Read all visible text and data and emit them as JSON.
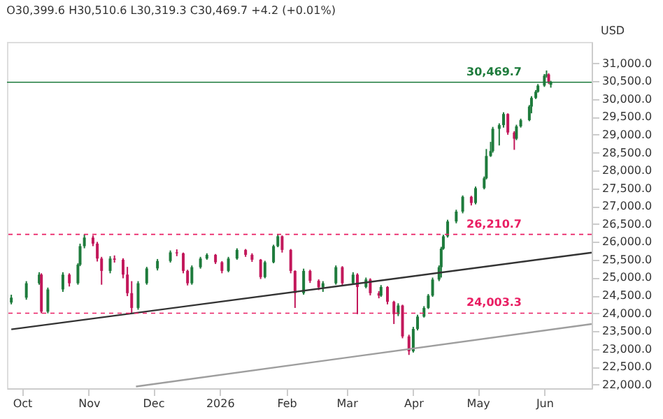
{
  "chart_data": {
    "type": "candlestick",
    "annotations": [
      "O30,399.6 H30,510.6 L30,319.3 C30,469.7 +4.2 (+0.01%)"
    ],
    "ylabel": "USD",
    "x": [
      "2025-09-26",
      "2025-10-03",
      "2025-10-09",
      "2025-10-10",
      "2025-10-13",
      "2025-10-20",
      "2025-10-23",
      "2025-10-27",
      "2025-10-28",
      "2025-10-30",
      "2025-11-03",
      "2025-11-05",
      "2025-11-07",
      "2025-11-11",
      "2025-11-13",
      "2025-11-17",
      "2025-11-19",
      "2025-11-21",
      "2025-11-24",
      "2025-11-28",
      "2025-12-03",
      "2025-12-09",
      "2025-12-12",
      "2025-12-15",
      "2025-12-17",
      "2025-12-19",
      "2025-12-23",
      "2025-12-26",
      "2025-12-30",
      "2026-01-02",
      "2026-01-05",
      "2026-01-09",
      "2026-01-13",
      "2026-01-16",
      "2026-01-20",
      "2026-01-22",
      "2026-01-26",
      "2026-01-28",
      "2026-01-30",
      "2026-02-03",
      "2026-02-05",
      "2026-02-09",
      "2026-02-12",
      "2026-02-16",
      "2026-02-18",
      "2026-02-24",
      "2026-02-27",
      "2026-03-04",
      "2026-03-06",
      "2026-03-10",
      "2026-03-12",
      "2026-03-16",
      "2026-03-17",
      "2026-03-20",
      "2026-03-23",
      "2026-03-25",
      "2026-03-27",
      "2026-03-30",
      "2026-04-01",
      "2026-04-03",
      "2026-04-06",
      "2026-04-08",
      "2026-04-10",
      "2026-04-13",
      "2026-04-14",
      "2026-04-15",
      "2026-04-17",
      "2026-04-21",
      "2026-04-24",
      "2026-04-28",
      "2026-04-30",
      "2026-05-04",
      "2026-05-05",
      "2026-05-07",
      "2026-05-08",
      "2026-05-11",
      "2026-05-13",
      "2026-05-15",
      "2026-05-18",
      "2026-05-19",
      "2026-05-21",
      "2026-05-25",
      "2026-05-26",
      "2026-05-28",
      "2026-05-29",
      "2026-06-01",
      "2026-06-02",
      "2026-06-03",
      "2026-06-04"
    ],
    "ohlc": [
      [
        24300,
        24520,
        24250,
        24437
      ],
      [
        24437,
        24900,
        24380,
        24841
      ],
      [
        24841,
        25150,
        24800,
        25083
      ],
      [
        25083,
        25120,
        24000,
        24045
      ],
      [
        24045,
        24720,
        24000,
        24668
      ],
      [
        24668,
        25150,
        24600,
        25083
      ],
      [
        25083,
        25120,
        24750,
        24841
      ],
      [
        24841,
        25400,
        24800,
        25360
      ],
      [
        25360,
        25950,
        25320,
        25880
      ],
      [
        25880,
        26210,
        25820,
        26120
      ],
      [
        26120,
        26180,
        25880,
        25950
      ],
      [
        25950,
        26000,
        25450,
        25533
      ],
      [
        25533,
        25580,
        24800,
        25187
      ],
      [
        25187,
        25600,
        25120,
        25533
      ],
      [
        25533,
        25620,
        25420,
        25500
      ],
      [
        25500,
        25540,
        24980,
        25083
      ],
      [
        25083,
        25300,
        24480,
        24564
      ],
      [
        24564,
        24900,
        24003,
        24150
      ],
      [
        24150,
        24900,
        24100,
        24841
      ],
      [
        24841,
        25300,
        24800,
        25256
      ],
      [
        25256,
        25520,
        25200,
        25464
      ],
      [
        25464,
        25760,
        25420,
        25706
      ],
      [
        25706,
        25790,
        25600,
        25680
      ],
      [
        25680,
        25700,
        25120,
        25187
      ],
      [
        25187,
        25220,
        24780,
        24841
      ],
      [
        24841,
        25340,
        24800,
        25291
      ],
      [
        25291,
        25580,
        25250,
        25533
      ],
      [
        25533,
        25680,
        25500,
        25637
      ],
      [
        25637,
        25660,
        25380,
        25429
      ],
      [
        25429,
        25460,
        25120,
        25187
      ],
      [
        25187,
        25580,
        25150,
        25533
      ],
      [
        25533,
        25820,
        25500,
        25775
      ],
      [
        25775,
        25800,
        25580,
        25637
      ],
      [
        25637,
        25680,
        25440,
        25500
      ],
      [
        25500,
        25520,
        24960,
        25014
      ],
      [
        25014,
        25470,
        24980,
        25429
      ],
      [
        25429,
        25920,
        25400,
        25880
      ],
      [
        25880,
        26210,
        25850,
        26156
      ],
      [
        26156,
        26180,
        25700,
        25775
      ],
      [
        25775,
        25800,
        25120,
        25187
      ],
      [
        25187,
        25200,
        24150,
        24564
      ],
      [
        24564,
        25250,
        24520,
        25187
      ],
      [
        25187,
        25220,
        24850,
        24910
      ],
      [
        24910,
        24950,
        24650,
        24730
      ],
      [
        24730,
        24900,
        24600,
        24841
      ],
      [
        24841,
        25340,
        24800,
        25291
      ],
      [
        25291,
        25320,
        24780,
        24841
      ],
      [
        24841,
        25150,
        24800,
        25083
      ],
      [
        25083,
        25120,
        23976,
        24737
      ],
      [
        24737,
        25000,
        24700,
        24945
      ],
      [
        24945,
        24980,
        24500,
        24564
      ],
      [
        24564,
        24620,
        24420,
        24495
      ],
      [
        24495,
        24790,
        24460,
        24737
      ],
      [
        24737,
        24760,
        24250,
        24322
      ],
      [
        24322,
        24350,
        23700,
        23976
      ],
      [
        23976,
        24280,
        23920,
        24218
      ],
      [
        24218,
        24240,
        23300,
        23353
      ],
      [
        23353,
        23400,
        22834,
        22938
      ],
      [
        22938,
        23620,
        22900,
        23561
      ],
      [
        23561,
        23960,
        23520,
        23907
      ],
      [
        23907,
        24200,
        23880,
        24150
      ],
      [
        24150,
        24540,
        24120,
        24495
      ],
      [
        24495,
        25000,
        24460,
        24945
      ],
      [
        24945,
        25340,
        24900,
        25291
      ],
      [
        25291,
        25860,
        25000,
        25810
      ],
      [
        25810,
        26200,
        25780,
        26156
      ],
      [
        26156,
        26620,
        26120,
        26571
      ],
      [
        26571,
        26900,
        26520,
        26848
      ],
      [
        26848,
        27300,
        26800,
        27263
      ],
      [
        27263,
        27290,
        27020,
        27090
      ],
      [
        27090,
        27550,
        27050,
        27505
      ],
      [
        27505,
        27830,
        27470,
        27782
      ],
      [
        27782,
        28600,
        27750,
        28405
      ],
      [
        28405,
        28800,
        28380,
        28543
      ],
      [
        28543,
        29220,
        28500,
        29166
      ],
      [
        29166,
        29320,
        28700,
        29270
      ],
      [
        29270,
        29630,
        29200,
        29581
      ],
      [
        29581,
        29600,
        29000,
        29062
      ],
      [
        29062,
        29100,
        28578,
        28889
      ],
      [
        28889,
        29280,
        28850,
        29235
      ],
      [
        29235,
        29450,
        29200,
        29408
      ],
      [
        29408,
        29830,
        29380,
        29789
      ],
      [
        29789,
        30080,
        29600,
        30031
      ],
      [
        30031,
        30250,
        30000,
        30204
      ],
      [
        30204,
        30420,
        30180,
        30377
      ],
      [
        30377,
        30700,
        30340,
        30654
      ],
      [
        30654,
        30800,
        30600,
        30689
      ],
      [
        30689,
        30720,
        30420,
        30465.5
      ],
      [
        30399.6,
        30510.6,
        30319.3,
        30469.7
      ]
    ],
    "colors": [
      "#1e7b3c",
      "#1e7b3c",
      "#1e7b3c",
      "#c2185b",
      "#1e7b3c",
      "#1e7b3c",
      "#c2185b",
      "#1e7b3c",
      "#1e7b3c",
      "#1e7b3c",
      "#c2185b",
      "#c2185b",
      "#c2185b",
      "#1e7b3c",
      "#c2185b",
      "#c2185b",
      "#c2185b",
      "#c2185b",
      "#1e7b3c",
      "#1e7b3c",
      "#1e7b3c",
      "#1e7b3c",
      "#c2185b",
      "#c2185b",
      "#c2185b",
      "#1e7b3c",
      "#1e7b3c",
      "#1e7b3c",
      "#c2185b",
      "#c2185b",
      "#1e7b3c",
      "#1e7b3c",
      "#c2185b",
      "#c2185b",
      "#c2185b",
      "#1e7b3c",
      "#1e7b3c",
      "#1e7b3c",
      "#c2185b",
      "#c2185b",
      "#c2185b",
      "#1e7b3c",
      "#c2185b",
      "#c2185b",
      "#1e7b3c",
      "#1e7b3c",
      "#c2185b",
      "#1e7b3c",
      "#c2185b",
      "#1e7b3c",
      "#c2185b",
      "#c2185b",
      "#1e7b3c",
      "#c2185b",
      "#c2185b",
      "#1e7b3c",
      "#c2185b",
      "#c2185b",
      "#1e7b3c",
      "#1e7b3c",
      "#1e7b3c",
      "#1e7b3c",
      "#1e7b3c",
      "#1e7b3c",
      "#1e7b3c",
      "#1e7b3c",
      "#1e7b3c",
      "#1e7b3c",
      "#1e7b3c",
      "#c2185b",
      "#1e7b3c",
      "#1e7b3c",
      "#1e7b3c",
      "#1e7b3c",
      "#1e7b3c",
      "#1e7b3c",
      "#1e7b3c",
      "#c2185b",
      "#c2185b",
      "#1e7b3c",
      "#1e7b3c",
      "#1e7b3c",
      "#1e7b3c",
      "#1e7b3c",
      "#1e7b3c",
      "#1e7b3c",
      "#1e7b3c",
      "#c2185b",
      "#1e7b3c"
    ],
    "series": [
      {
        "type": "line",
        "x": [
          "2025-09-26",
          "2026-06-23"
        ],
        "values": [
          23550,
          25700
        ],
        "color": "#333333"
      },
      {
        "type": "line",
        "x": [
          "2025-11-23",
          "2026-06-23"
        ],
        "values": [
          21950,
          23700
        ],
        "color": "#9e9e9e"
      }
    ],
    "ref_lines": [
      {
        "axis": "y",
        "value": 26210.7,
        "label": "26,210.7",
        "color": "#e91e63",
        "line_style": "dashed"
      },
      {
        "axis": "y",
        "value": 24003.3,
        "label": "24,003.3",
        "color": "#e91e63",
        "line_style": "dashed"
      },
      {
        "axis": "y",
        "value": 30469.7,
        "label": "30,469.7",
        "color": "#1e7b3c",
        "line_style": "solid"
      }
    ],
    "xlim": [
      "2025-09-24",
      "2026-06-23"
    ],
    "xticks": [
      {
        "value": "2025-10-01",
        "label": "Oct"
      },
      {
        "value": "2025-11-01",
        "label": "Nov"
      },
      {
        "value": "2025-12-01",
        "label": "Dec"
      },
      {
        "value": "2026-01-01",
        "label": "2026"
      },
      {
        "value": "2026-02-01",
        "label": "Feb"
      },
      {
        "value": "2026-03-01",
        "label": "Mar"
      },
      {
        "value": "2026-04-01",
        "label": "Apr"
      },
      {
        "value": "2026-05-01",
        "label": "May"
      },
      {
        "value": "2026-06-01",
        "label": "Jun"
      }
    ],
    "ylim": [
      21900,
      31600
    ],
    "yticks": [
      {
        "value": 22000,
        "label": "22,000.0"
      },
      {
        "value": 22500,
        "label": "22,500.0"
      },
      {
        "value": 23000,
        "label": "23,000.0"
      },
      {
        "value": 23500,
        "label": "23,500.0"
      },
      {
        "value": 24000,
        "label": "24,000.0"
      },
      {
        "value": 24500,
        "label": "24,500.0"
      },
      {
        "value": 25000,
        "label": "25,000.0"
      },
      {
        "value": 25500,
        "label": "25,500.0"
      },
      {
        "value": 26000,
        "label": "26,000.0"
      },
      {
        "value": 26500,
        "label": "26,500.0"
      },
      {
        "value": 27000,
        "label": "27,000.0"
      },
      {
        "value": 27500,
        "label": "27,500.0"
      },
      {
        "value": 28000,
        "label": "28,000.0"
      },
      {
        "value": 28500,
        "label": "28,500.0"
      },
      {
        "value": 29000,
        "label": "29,000.0"
      },
      {
        "value": 29500,
        "label": "29,500.0"
      },
      {
        "value": 30000,
        "label": "30,000.0"
      },
      {
        "value": 30500,
        "label": "30,500.0"
      },
      {
        "value": 31000,
        "label": "31,000.0"
      }
    ]
  }
}
